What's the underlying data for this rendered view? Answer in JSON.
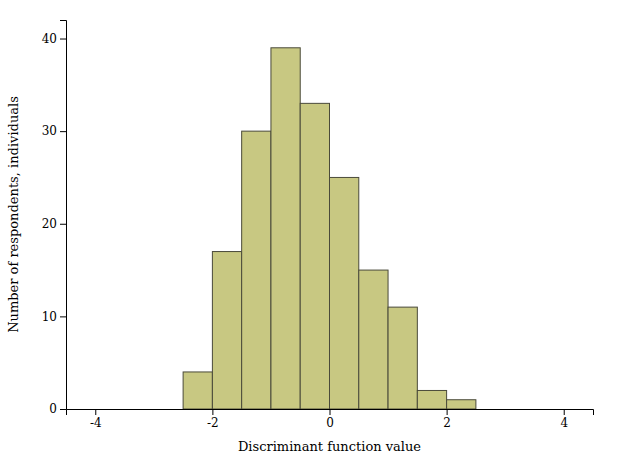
{
  "chart_data": {
    "type": "histogram",
    "bins": [
      -2.5,
      -2.0,
      -1.5,
      -1.0,
      -0.5,
      0.0,
      0.5,
      1.0,
      1.5,
      2.0,
      2.5
    ],
    "values": [
      4,
      17,
      30,
      39,
      33,
      25,
      15,
      11,
      2,
      1
    ],
    "color": "#c8c882",
    "xlim": [
      -4.5,
      4.5
    ],
    "ylim": [
      0,
      42
    ],
    "xticks": [
      -4,
      -2,
      0,
      2,
      4
    ],
    "yticks": [
      0,
      10,
      20,
      30,
      40
    ],
    "xlabel": "Discriminant function value",
    "ylabel": "Number of respondents, individuals",
    "grid": false
  }
}
